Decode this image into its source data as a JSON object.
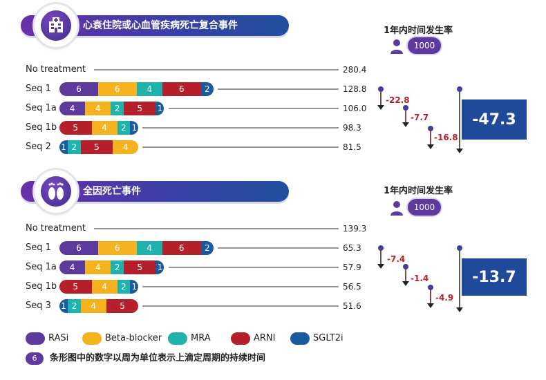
{
  "colors": {
    "RASi": "#5c3a9e",
    "Beta-blocker": "#f5b21f",
    "MRA": "#1fb3ad",
    "ARNI": "#b5202a",
    "SGLT2i": "#1a5aa0"
  },
  "panels": [
    {
      "title": "心衰住院或心血管疾病死亡复合事件",
      "icon": "hospital-icon",
      "rate_title": "1年内时间发生率",
      "rate_unit": "1000",
      "rows": [
        {
          "label": "No treatment",
          "value": "280.4",
          "segments": []
        },
        {
          "label": "Seq 1",
          "value": "128.8",
          "segments": [
            {
              "drug": "RASi",
              "weeks": "6"
            },
            {
              "drug": "Beta-blocker",
              "weeks": "6"
            },
            {
              "drug": "MRA",
              "weeks": "4"
            },
            {
              "drug": "ARNI",
              "weeks": "6"
            },
            {
              "drug": "SGLT2i",
              "weeks": "2"
            }
          ]
        },
        {
          "label": "Seq 1a",
          "value": "106.0",
          "segments": [
            {
              "drug": "RASi",
              "weeks": "4"
            },
            {
              "drug": "Beta-blocker",
              "weeks": "4"
            },
            {
              "drug": "MRA",
              "weeks": "2"
            },
            {
              "drug": "ARNI",
              "weeks": "5"
            },
            {
              "drug": "SGLT2i",
              "weeks": "1"
            }
          ]
        },
        {
          "label": "Seq 1b",
          "value": "98.3",
          "segments": [
            {
              "drug": "ARNI",
              "weeks": "5"
            },
            {
              "drug": "Beta-blocker",
              "weeks": "4"
            },
            {
              "drug": "MRA",
              "weeks": "2"
            },
            {
              "drug": "SGLT2i",
              "weeks": "1"
            }
          ]
        },
        {
          "label": "Seq 2",
          "value": "81.5",
          "segments": [
            {
              "drug": "SGLT2i",
              "weeks": "1"
            },
            {
              "drug": "MRA",
              "weeks": "2"
            },
            {
              "drug": "ARNI",
              "weeks": "5"
            },
            {
              "drug": "Beta-blocker",
              "weeks": "4"
            }
          ]
        }
      ],
      "deltas": [
        "-22.8",
        "-7.7",
        "-16.8"
      ],
      "total": "-47.3"
    },
    {
      "title": "全因死亡事件",
      "icon": "feet-icon",
      "rate_title": "1年内时间发生率",
      "rate_unit": "1000",
      "rows": [
        {
          "label": "No treatment",
          "value": "139.3",
          "segments": []
        },
        {
          "label": "Seq 1",
          "value": "65.3",
          "segments": [
            {
              "drug": "RASi",
              "weeks": "6"
            },
            {
              "drug": "Beta-blocker",
              "weeks": "6"
            },
            {
              "drug": "MRA",
              "weeks": "4"
            },
            {
              "drug": "ARNI",
              "weeks": "6"
            },
            {
              "drug": "SGLT2i",
              "weeks": "2"
            }
          ]
        },
        {
          "label": "Seq 1a",
          "value": "57.9",
          "segments": [
            {
              "drug": "RASi",
              "weeks": "4"
            },
            {
              "drug": "Beta-blocker",
              "weeks": "4"
            },
            {
              "drug": "MRA",
              "weeks": "2"
            },
            {
              "drug": "ARNI",
              "weeks": "5"
            },
            {
              "drug": "SGLT2i",
              "weeks": "1"
            }
          ]
        },
        {
          "label": "Seq 1b",
          "value": "56.5",
          "segments": [
            {
              "drug": "ARNI",
              "weeks": "5"
            },
            {
              "drug": "Beta-blocker",
              "weeks": "4"
            },
            {
              "drug": "MRA",
              "weeks": "2"
            },
            {
              "drug": "SGLT2i",
              "weeks": "1"
            }
          ]
        },
        {
          "label": "Seq 3",
          "value": "51.6",
          "segments": [
            {
              "drug": "SGLT2i",
              "weeks": "1"
            },
            {
              "drug": "MRA",
              "weeks": "2"
            },
            {
              "drug": "Beta-blocker",
              "weeks": "4"
            },
            {
              "drug": "ARNI",
              "weeks": "5"
            }
          ]
        }
      ],
      "deltas": [
        "-7.4",
        "-1.4",
        "-4.9"
      ],
      "total": "-13.7"
    }
  ],
  "legend": [
    {
      "drug": "RASi",
      "label": "RASi"
    },
    {
      "drug": "Beta-blocker",
      "label": "Beta-blocker"
    },
    {
      "drug": "MRA",
      "label": "MRA"
    },
    {
      "drug": "ARNI",
      "label": "ARNI"
    },
    {
      "drug": "SGLT2i",
      "label": "SGLT2i"
    }
  ],
  "note": {
    "chip": "6",
    "text": "条形图中的数字以周为单位表示上滴定周期的持续时间"
  }
}
